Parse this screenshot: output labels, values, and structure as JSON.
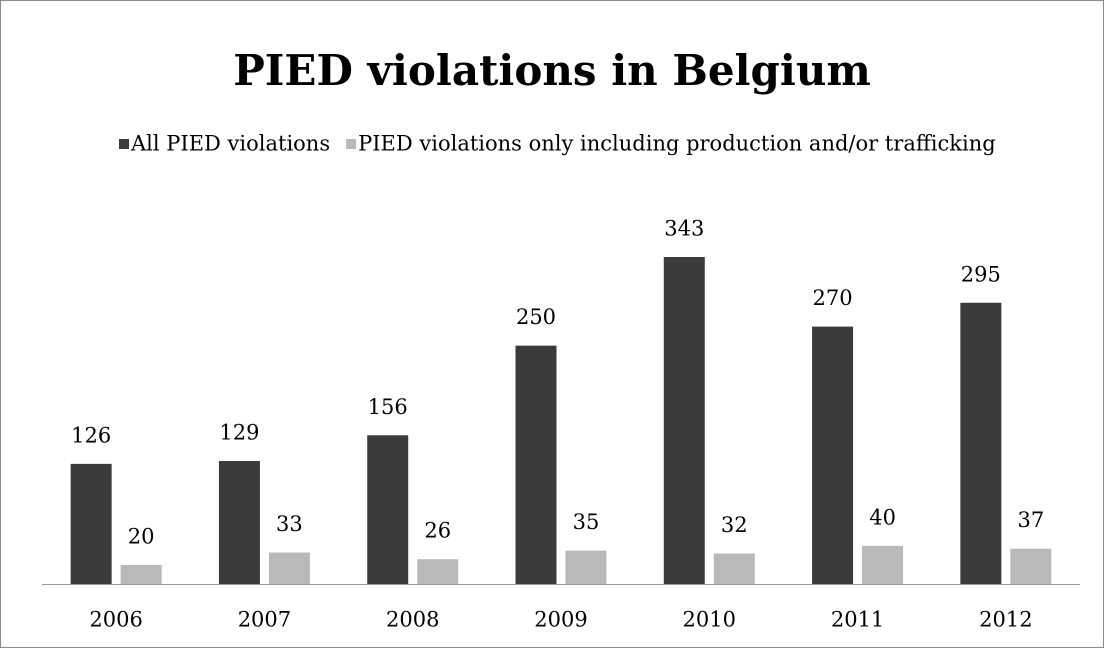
{
  "chart_data": {
    "type": "bar",
    "title": "PIED violations in Belgium",
    "categories": [
      "2006",
      "2007",
      "2008",
      "2009",
      "2010",
      "2011",
      "2012"
    ],
    "series": [
      {
        "name": "All PIED violations",
        "color": "#3b3b3b",
        "values": [
          126,
          129,
          156,
          250,
          343,
          270,
          295
        ]
      },
      {
        "name": "PIED violations only including production and/or trafficking",
        "color": "#b9b9b9",
        "values": [
          20,
          33,
          26,
          35,
          32,
          40,
          37
        ]
      }
    ],
    "legend": "top"
  }
}
